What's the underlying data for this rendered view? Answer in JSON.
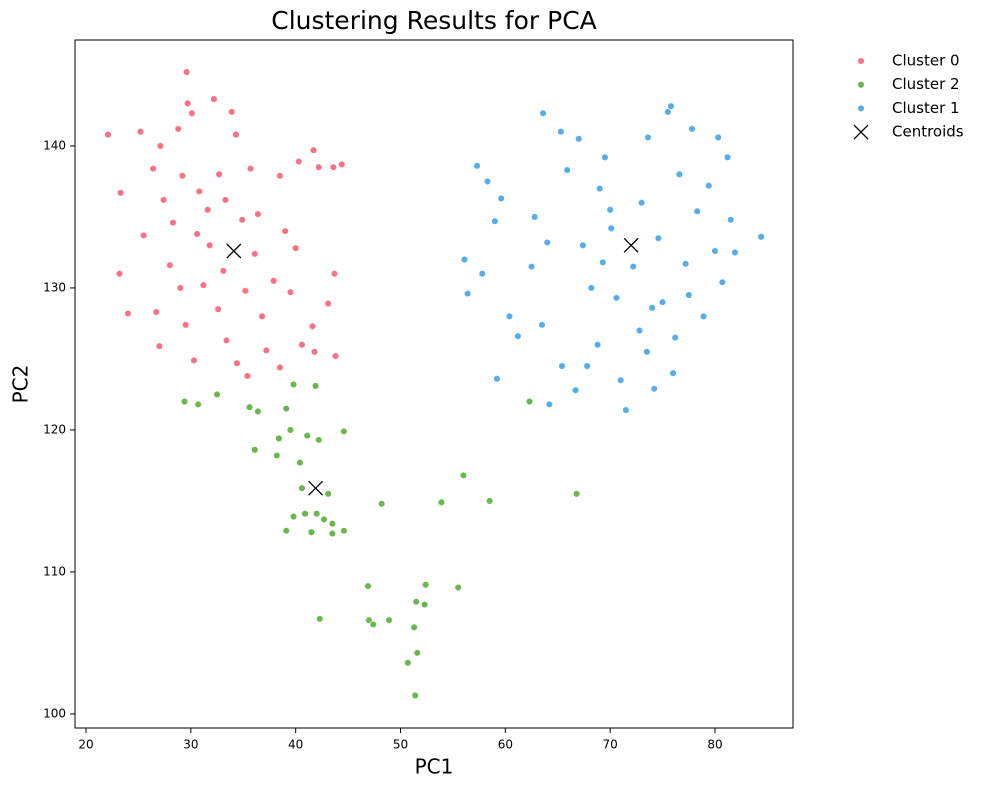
{
  "chart_data": {
    "type": "scatter",
    "title": "Clustering Results for PCA",
    "x_label": "PC1",
    "y_label": "PC2",
    "xlim": [
      18.95,
      87.44
    ],
    "ylim": [
      99.01,
      147.46
    ],
    "xticks": [
      20,
      30,
      40,
      50,
      60,
      70,
      80
    ],
    "yticks": [
      100,
      110,
      120,
      130,
      140
    ],
    "legend": "outside-upper-right",
    "series": [
      {
        "name": "Cluster 0",
        "color": "#f77189",
        "marker": "circle",
        "x": [
          22.1,
          23.3,
          23.2,
          24.0,
          25.2,
          25.5,
          26.4,
          27.0,
          27.4,
          28.3,
          28.8,
          29.6,
          29.7,
          30.1,
          29.2,
          30.6,
          31.2,
          29.5,
          30.3,
          31.6,
          32.2,
          32.7,
          33.3,
          33.9,
          34.3,
          33.1,
          32.6,
          33.4,
          34.4,
          35.2,
          35.7,
          36.4,
          36.1,
          36.8,
          37.2,
          37.9,
          38.5,
          39.0,
          39.5,
          40.3,
          40.0,
          40.6,
          41.6,
          41.7,
          42.2,
          43.6,
          44.4,
          43.1,
          43.7,
          43.8,
          41.8,
          38.5,
          26.7,
          28.0,
          31.8,
          30.8,
          34.9,
          27.1,
          35.4,
          29.0
        ],
        "y": [
          140.8,
          136.7,
          131.0,
          128.2,
          141.0,
          133.7,
          138.4,
          125.9,
          136.2,
          134.6,
          141.2,
          145.2,
          143.0,
          142.3,
          137.9,
          133.8,
          130.2,
          127.4,
          124.9,
          135.5,
          143.3,
          138.0,
          136.2,
          142.4,
          140.8,
          131.2,
          128.5,
          126.3,
          124.7,
          129.8,
          138.4,
          135.2,
          132.4,
          128.0,
          125.6,
          130.5,
          137.9,
          134.0,
          129.7,
          138.9,
          132.8,
          126.0,
          127.3,
          139.7,
          138.5,
          138.5,
          138.7,
          128.9,
          131.0,
          125.2,
          125.5,
          124.4,
          128.3,
          131.6,
          133.0,
          136.8,
          134.8,
          140.0,
          123.8,
          130.0
        ]
      },
      {
        "name": "Cluster 2",
        "color": "#6ab74f",
        "marker": "circle",
        "x": [
          29.4,
          30.7,
          32.5,
          35.6,
          36.4,
          39.8,
          41.9,
          39.1,
          39.5,
          38.4,
          36.1,
          38.2,
          40.4,
          41.1,
          42.2,
          44.6,
          40.6,
          43.1,
          39.8,
          40.9,
          42.0,
          42.7,
          43.5,
          39.1,
          41.5,
          43.5,
          44.6,
          48.2,
          53.9,
          56.0,
          58.5,
          46.9,
          52.4,
          55.5,
          51.5,
          52.3,
          42.3,
          47.0,
          47.4,
          48.9,
          51.3,
          51.6,
          50.7,
          51.4,
          62.3,
          66.8
        ],
        "y": [
          122.0,
          121.8,
          122.5,
          121.6,
          121.3,
          123.2,
          123.1,
          121.5,
          120.0,
          119.4,
          118.6,
          118.2,
          117.7,
          119.6,
          119.3,
          119.9,
          115.9,
          115.5,
          113.9,
          114.1,
          114.1,
          113.7,
          113.4,
          112.9,
          112.8,
          112.7,
          112.9,
          114.8,
          114.9,
          116.8,
          115.0,
          109.0,
          109.1,
          108.9,
          107.9,
          107.7,
          106.7,
          106.6,
          106.3,
          106.6,
          106.1,
          104.3,
          103.6,
          101.3,
          122.0,
          115.5
        ]
      },
      {
        "name": "Cluster 1",
        "color": "#56adea",
        "marker": "circle",
        "x": [
          56.1,
          56.4,
          57.3,
          57.8,
          58.3,
          59.0,
          59.6,
          60.4,
          59.2,
          61.2,
          62.8,
          63.6,
          63.5,
          64.2,
          65.3,
          65.9,
          65.4,
          66.7,
          67.0,
          67.4,
          68.2,
          68.8,
          69.0,
          69.5,
          70.1,
          70.6,
          71.0,
          71.5,
          72.2,
          72.8,
          73.0,
          73.6,
          74.2,
          74.6,
          75.0,
          75.5,
          75.8,
          76.2,
          76.6,
          77.2,
          77.8,
          78.3,
          78.9,
          79.4,
          80.0,
          80.3,
          80.7,
          81.2,
          81.5,
          81.9,
          84.4,
          76.0,
          67.8,
          70.0,
          62.5,
          64.0,
          73.5,
          77.5,
          69.3,
          74.0
        ],
        "y": [
          132.0,
          129.6,
          138.6,
          131.0,
          137.5,
          134.7,
          136.3,
          128.0,
          123.6,
          126.6,
          135.0,
          142.3,
          127.4,
          121.8,
          141.0,
          138.3,
          124.5,
          122.8,
          140.5,
          133.0,
          130.0,
          126.0,
          137.0,
          139.2,
          134.2,
          129.3,
          123.5,
          121.4,
          131.5,
          127.0,
          136.0,
          140.6,
          122.9,
          133.5,
          129.0,
          142.4,
          142.8,
          126.5,
          138.0,
          131.7,
          141.2,
          135.4,
          128.0,
          137.2,
          132.6,
          140.6,
          130.4,
          139.2,
          134.8,
          132.5,
          133.6,
          124.0,
          124.5,
          135.5,
          131.5,
          133.2,
          125.5,
          129.5,
          131.8,
          128.6
        ]
      },
      {
        "name": "Centroids",
        "color": "#000000",
        "marker": "x",
        "x": [
          34.1,
          41.9,
          72.0
        ],
        "y": [
          132.6,
          115.9,
          133.0
        ]
      }
    ]
  }
}
